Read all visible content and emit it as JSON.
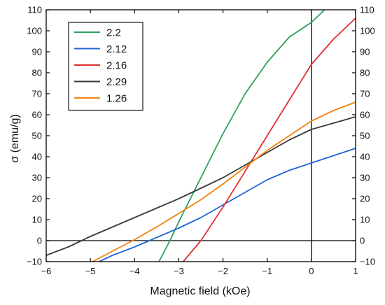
{
  "chart_data": {
    "type": "line",
    "title": "",
    "xlabel": "Magnetic field (kOe)",
    "ylabel": "σ (emu/g)",
    "xlim": [
      -6,
      1
    ],
    "ylim": [
      -10,
      110
    ],
    "x_ticks": [
      -6,
      -5,
      -4,
      -3,
      -2,
      -1,
      0,
      1
    ],
    "x_tick_labels": [
      "−6",
      "−5",
      "−4",
      "−3",
      "−2",
      "−1",
      "0",
      "1"
    ],
    "y_ticks": [
      -10,
      0,
      10,
      20,
      30,
      40,
      50,
      60,
      70,
      80,
      90,
      100,
      110
    ],
    "y_tick_labels": [
      "−10",
      "0",
      "10",
      "20",
      "30",
      "40",
      "50",
      "60",
      "70",
      "80",
      "90",
      "100",
      "110"
    ],
    "right_axis_ticks": true,
    "grid": false,
    "reference_lines": {
      "x": 0,
      "y": 0
    },
    "legend": {
      "position": "top-left",
      "frame": true
    },
    "series": [
      {
        "name": "2.2",
        "color": "#2ca05a",
        "points": [
          [
            -3.45,
            -10
          ],
          [
            -3.2,
            0
          ],
          [
            -3.0,
            9
          ],
          [
            -2.5,
            30
          ],
          [
            -2.0,
            51
          ],
          [
            -1.5,
            70
          ],
          [
            -1.0,
            85
          ],
          [
            -0.5,
            97
          ],
          [
            0,
            104
          ],
          [
            0.3,
            110
          ]
        ]
      },
      {
        "name": "2.12",
        "color": "#1f66d6",
        "points": [
          [
            -4.8,
            -10
          ],
          [
            -4.5,
            -7
          ],
          [
            -4.0,
            -3
          ],
          [
            -3.5,
            1.5
          ],
          [
            -3.0,
            6
          ],
          [
            -2.5,
            11
          ],
          [
            -2.0,
            17
          ],
          [
            -1.5,
            23
          ],
          [
            -1.0,
            29
          ],
          [
            -0.5,
            33.5
          ],
          [
            0,
            37
          ],
          [
            0.5,
            40.5
          ],
          [
            1.0,
            44
          ]
        ]
      },
      {
        "name": "2.16",
        "color": "#e03030",
        "points": [
          [
            -2.9,
            -10
          ],
          [
            -2.5,
            0
          ],
          [
            -2.0,
            16
          ],
          [
            -1.5,
            33
          ],
          [
            -1.0,
            50
          ],
          [
            -0.5,
            67
          ],
          [
            0,
            84
          ],
          [
            0.5,
            96
          ],
          [
            1.0,
            106
          ]
        ]
      },
      {
        "name": "2.29",
        "color": "#3a3a3a",
        "points": [
          [
            -6.0,
            -7
          ],
          [
            -5.5,
            -3
          ],
          [
            -5.2,
            0
          ],
          [
            -5.0,
            2
          ],
          [
            -4.5,
            6.5
          ],
          [
            -4.0,
            11
          ],
          [
            -3.5,
            15.5
          ],
          [
            -3.0,
            20
          ],
          [
            -2.5,
            25
          ],
          [
            -2.0,
            30
          ],
          [
            -1.5,
            36
          ],
          [
            -1.0,
            42
          ],
          [
            -0.5,
            48
          ],
          [
            0,
            53
          ],
          [
            0.5,
            56
          ],
          [
            1.0,
            59
          ]
        ]
      },
      {
        "name": "1.26",
        "color": "#f0820e",
        "points": [
          [
            -4.95,
            -10
          ],
          [
            -4.5,
            -5
          ],
          [
            -4.0,
            0.5
          ],
          [
            -3.5,
            6.5
          ],
          [
            -3.0,
            13
          ],
          [
            -2.5,
            19.5
          ],
          [
            -2.0,
            27
          ],
          [
            -1.5,
            35
          ],
          [
            -1.0,
            43
          ],
          [
            -0.5,
            50
          ],
          [
            0,
            57
          ],
          [
            0.5,
            62
          ],
          [
            1.0,
            66
          ]
        ]
      }
    ]
  }
}
